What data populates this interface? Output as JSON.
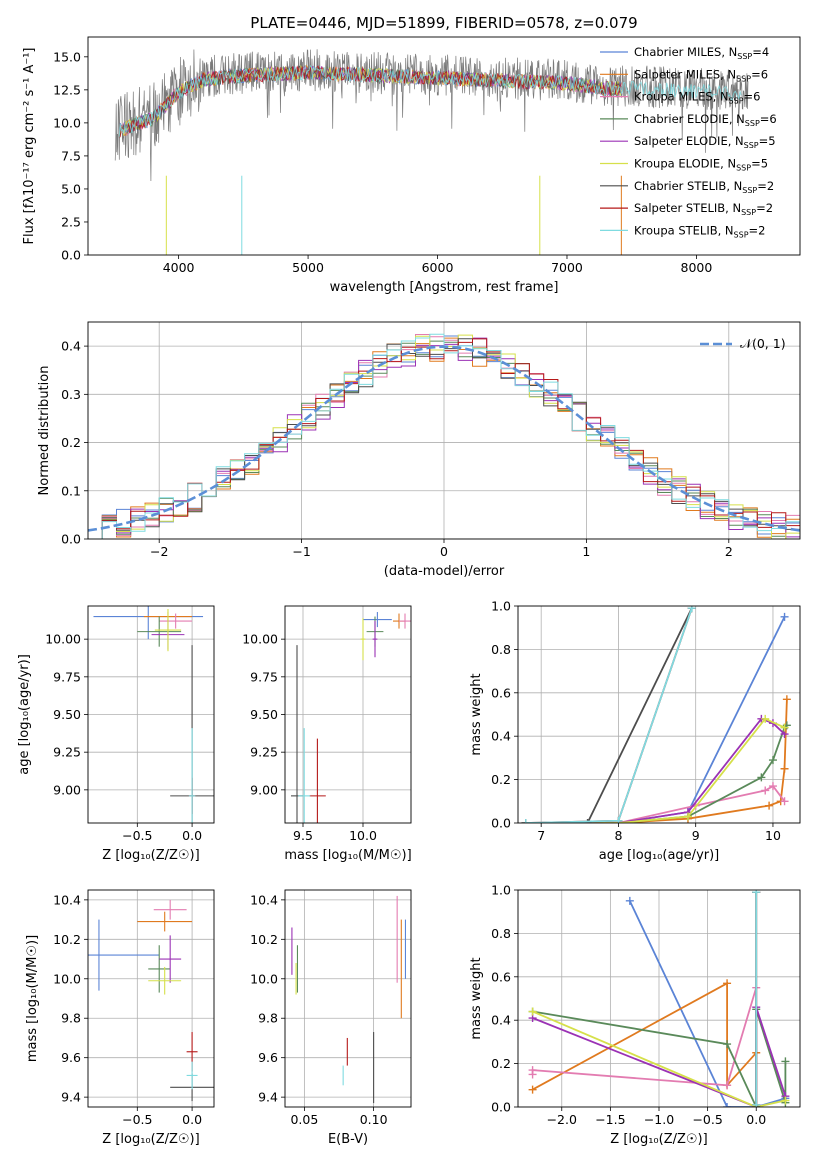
{
  "colors": {
    "chab_miles": "#5b84d6",
    "salp_miles": "#e07a1f",
    "krou_miles": "#e37cb1",
    "chab_elodie": "#5a8a5a",
    "salp_elodie": "#9b32b5",
    "krou_elodie": "#d6e04a",
    "chab_stelib": "#4d4d4d",
    "salp_stelib": "#b51919",
    "krou_stelib": "#7fdbe0",
    "gauss": "#5b8fd6"
  },
  "chart_data": [
    {
      "id": "spectrum",
      "type": "line",
      "title": "PLATE=0446, MJD=51899, FIBERID=0578, z=0.079",
      "xlabel": "wavelength [Angstrom, rest frame]",
      "ylabel": "Flux [fλ10⁻¹⁷ erg cm⁻² s⁻¹ A⁻¹]",
      "xlim": [
        3300,
        8800
      ],
      "ylim": [
        0,
        16.5
      ],
      "xticks": [
        "4000",
        "5000",
        "6000",
        "7000",
        "8000"
      ],
      "yticks": [
        "0.0",
        "2.5",
        "5.0",
        "7.5",
        "10.0",
        "12.5",
        "15.0"
      ],
      "legend_position": "top-right",
      "legend": [
        {
          "label": "Chabrier MILES, N",
          "sub": "SSP",
          "suffix": "=4",
          "color_key": "chab_miles"
        },
        {
          "label": "Salpeter MILES, N",
          "sub": "SSP",
          "suffix": "=6",
          "color_key": "salp_miles"
        },
        {
          "label": "Kroupa MILES, N",
          "sub": "SSP",
          "suffix": "=6",
          "color_key": "krou_miles"
        },
        {
          "label": "Chabrier ELODIE, N",
          "sub": "SSP",
          "suffix": "=6",
          "color_key": "chab_elodie"
        },
        {
          "label": "Salpeter ELODIE, N",
          "sub": "SSP",
          "suffix": "=5",
          "color_key": "salp_elodie"
        },
        {
          "label": "Kroupa ELODIE, N",
          "sub": "SSP",
          "suffix": "=5",
          "color_key": "krou_elodie"
        },
        {
          "label": "Chabrier STELIB, N",
          "sub": "SSP",
          "suffix": "=2",
          "color_key": "chab_stelib"
        },
        {
          "label": "Salpeter STELIB, N",
          "sub": "SSP",
          "suffix": "=2",
          "color_key": "salp_stelib"
        },
        {
          "label": "Kroupa STELIB, N",
          "sub": "SSP",
          "suffix": "=2",
          "color_key": "krou_stelib"
        }
      ],
      "data_envelope": {
        "x": [
          3500,
          3800,
          4000,
          4200,
          4500,
          5000,
          5500,
          6000,
          6500,
          7000,
          7300,
          7500,
          8000,
          8500
        ],
        "y": [
          9.5,
          10.5,
          12.5,
          13.5,
          13.8,
          14.0,
          13.8,
          13.6,
          13.4,
          13.2,
          12.8,
          12.8,
          12.6,
          12.3
        ]
      },
      "model_cutoff_x": 7420
    },
    {
      "id": "residuals",
      "type": "line",
      "xlabel": "(data-model)/error",
      "ylabel": "Normed distribution",
      "xlim": [
        -2.5,
        2.5
      ],
      "ylim": [
        0,
        0.45
      ],
      "xticks": [
        "−2",
        "−1",
        "0",
        "1",
        "2"
      ],
      "yticks": [
        "0.0",
        "0.1",
        "0.2",
        "0.3",
        "0.4"
      ],
      "grid": true,
      "legend": [
        {
          "label": "𝒩(0, 1)",
          "color_key": "gauss"
        }
      ],
      "legend_position": "top-right",
      "bin_width": 0.1
    },
    {
      "id": "age_vs_Z",
      "type": "scatter",
      "xlabel": "Z [log₁₀(Z/Z☉)]",
      "ylabel": "age  [log₁₀(age/yr)]",
      "xlim": [
        -0.95,
        0.2
      ],
      "ylim": [
        8.78,
        10.22
      ],
      "xticks": [
        "−0.5",
        "0.0"
      ],
      "yticks": [
        "9.00",
        "9.25",
        "9.50",
        "9.75",
        "10.00"
      ],
      "grid": true,
      "points": [
        {
          "k": "chab_miles",
          "x": -0.4,
          "y": 10.15,
          "xe": 0.5,
          "ye": 0.15
        },
        {
          "k": "salp_miles",
          "x": -0.22,
          "y": 10.15,
          "xe": 0.22,
          "ye": 0.03
        },
        {
          "k": "krou_miles",
          "x": -0.15,
          "y": 10.12,
          "xe": 0.15,
          "ye": 0.05
        },
        {
          "k": "chab_elodie",
          "x": -0.3,
          "y": 10.05,
          "xe": 0.2,
          "ye": 0.1
        },
        {
          "k": "salp_elodie",
          "x": -0.22,
          "y": 10.03,
          "xe": 0.15,
          "ye": 0.1
        },
        {
          "k": "krou_elodie",
          "x": -0.22,
          "y": 10.06,
          "xe": 0.12,
          "ye": 0.14
        },
        {
          "k": "chab_stelib",
          "x": 0.0,
          "y": 8.96,
          "xe": 0.2,
          "ye": 1.0
        },
        {
          "k": "salp_stelib",
          "x": 0.0,
          "y": 8.96,
          "xe": 0.03,
          "ye": 0.12
        },
        {
          "k": "krou_stelib",
          "x": 0.0,
          "y": 8.96,
          "xe": 0.03,
          "ye": 0.45
        }
      ]
    },
    {
      "id": "age_vs_mass",
      "type": "scatter",
      "xlabel": "mass [log₁₀(M/M☉)]",
      "ylabel": "",
      "xlim": [
        9.35,
        10.4
      ],
      "ylim": [
        8.78,
        10.22
      ],
      "xticks": [
        "9.5",
        "10.0"
      ],
      "yticks": [
        "9.00",
        "9.25",
        "9.50",
        "9.75",
        "10.00"
      ],
      "grid": true,
      "points": [
        {
          "k": "chab_miles",
          "x": 10.12,
          "y": 10.13,
          "xe": 0.12,
          "ye": 0.05
        },
        {
          "k": "salp_miles",
          "x": 10.3,
          "y": 10.12,
          "xe": 0.05,
          "ye": 0.05
        },
        {
          "k": "krou_miles",
          "x": 10.35,
          "y": 10.12,
          "xe": 0.05,
          "ye": 0.05
        },
        {
          "k": "chab_elodie",
          "x": 10.1,
          "y": 10.05,
          "xe": 0.07,
          "ye": 0.1
        },
        {
          "k": "salp_elodie",
          "x": 10.1,
          "y": 10.0,
          "xe": 0.02,
          "ye": 0.12
        },
        {
          "k": "krou_elodie",
          "x": 10.0,
          "y": 10.0,
          "xe": 0.02,
          "ye": 0.14
        },
        {
          "k": "chab_stelib",
          "x": 9.45,
          "y": 8.96,
          "xe": 0.05,
          "ye": 1.0
        },
        {
          "k": "salp_stelib",
          "x": 9.62,
          "y": 8.96,
          "xe": 0.07,
          "ye": 0.38
        },
        {
          "k": "krou_stelib",
          "x": 9.51,
          "y": 8.96,
          "xe": 0.05,
          "ye": 0.45
        }
      ]
    },
    {
      "id": "weight_vs_age",
      "type": "line",
      "xlabel": "age  [log₁₀(age/yr)]",
      "ylabel": "mass weight",
      "xlim": [
        6.7,
        10.35
      ],
      "ylim": [
        0,
        1.0
      ],
      "xticks": [
        "7",
        "8",
        "9",
        "10"
      ],
      "yticks": [
        "0.0",
        "0.2",
        "0.4",
        "0.6",
        "0.8",
        "1.0"
      ],
      "grid": true,
      "series": [
        {
          "k": "chab_miles",
          "x": [
            6.8,
            8.0,
            8.9,
            10.15
          ],
          "y": [
            0.0,
            0.0,
            0.05,
            0.95
          ]
        },
        {
          "k": "salp_miles",
          "x": [
            6.8,
            8.0,
            8.9,
            9.95,
            10.1,
            10.15,
            10.18
          ],
          "y": [
            0.0,
            0.0,
            0.02,
            0.08,
            0.1,
            0.25,
            0.57
          ]
        },
        {
          "k": "krou_miles",
          "x": [
            6.8,
            8.0,
            9.0,
            9.9,
            10.0,
            10.15
          ],
          "y": [
            0.0,
            0.0,
            0.08,
            0.15,
            0.17,
            0.1
          ]
        },
        {
          "k": "chab_elodie",
          "x": [
            6.8,
            8.0,
            8.9,
            9.85,
            10.0,
            10.15,
            10.18
          ],
          "y": [
            0.0,
            0.0,
            0.03,
            0.21,
            0.29,
            0.44,
            0.45
          ]
        },
        {
          "k": "salp_elodie",
          "x": [
            6.8,
            8.0,
            8.9,
            9.85,
            10.0,
            10.15
          ],
          "y": [
            0.0,
            0.0,
            0.05,
            0.48,
            0.46,
            0.41
          ]
        },
        {
          "k": "krou_elodie",
          "x": [
            6.8,
            8.0,
            8.9,
            9.9,
            10.15
          ],
          "y": [
            0.0,
            0.0,
            0.03,
            0.48,
            0.44
          ]
        },
        {
          "k": "chab_stelib",
          "x": [
            6.8,
            7.6,
            8.95
          ],
          "y": [
            0.0,
            0.0,
            0.99
          ]
        },
        {
          "k": "salp_stelib",
          "x": [
            6.8,
            8.0,
            8.95
          ],
          "y": [
            0.0,
            0.01,
            0.99
          ]
        },
        {
          "k": "krou_stelib",
          "x": [
            6.8,
            8.0,
            8.95
          ],
          "y": [
            0.0,
            0.01,
            0.99
          ]
        }
      ]
    },
    {
      "id": "mass_vs_Z",
      "type": "scatter",
      "xlabel": "Z [log₁₀(Z/Z☉)]",
      "ylabel": "mass [log₁₀(M/M☉)]",
      "xlim": [
        -0.95,
        0.2
      ],
      "ylim": [
        9.35,
        10.45
      ],
      "xticks": [
        "−0.5",
        "0.0"
      ],
      "yticks": [
        "9.4",
        "9.6",
        "9.8",
        "10.0",
        "10.2",
        "10.4"
      ],
      "grid": true,
      "points": [
        {
          "k": "chab_miles",
          "x": -0.85,
          "y": 10.12,
          "xe": 0.55,
          "ye": 0.18
        },
        {
          "k": "salp_miles",
          "x": -0.25,
          "y": 10.29,
          "xe": 0.25,
          "ye": 0.05
        },
        {
          "k": "krou_miles",
          "x": -0.2,
          "y": 10.35,
          "xe": 0.15,
          "ye": 0.05
        },
        {
          "k": "chab_elodie",
          "x": -0.3,
          "y": 10.05,
          "xe": 0.1,
          "ye": 0.12
        },
        {
          "k": "salp_elodie",
          "x": -0.2,
          "y": 10.1,
          "xe": 0.1,
          "ye": 0.12
        },
        {
          "k": "krou_elodie",
          "x": -0.25,
          "y": 9.99,
          "xe": 0.15,
          "ye": 0.07
        },
        {
          "k": "chab_stelib",
          "x": 0.0,
          "y": 9.45,
          "xe": 0.2,
          "ye": 0.07
        },
        {
          "k": "salp_stelib",
          "x": 0.0,
          "y": 9.63,
          "xe": 0.05,
          "ye": 0.1
        },
        {
          "k": "krou_stelib",
          "x": 0.0,
          "y": 9.51,
          "xe": 0.05,
          "ye": 0.07
        }
      ]
    },
    {
      "id": "mass_vs_ebv",
      "type": "scatter",
      "xlabel": "E(B-V)",
      "ylabel": "",
      "xlim": [
        0.036,
        0.127
      ],
      "ylim": [
        9.35,
        10.45
      ],
      "xticks": [
        "0.05",
        "0.10"
      ],
      "yticks": [
        "9.4",
        "9.6",
        "9.8",
        "10.0",
        "10.2",
        "10.4"
      ],
      "grid": true,
      "points": [
        {
          "k": "chab_miles",
          "x": 0.123,
          "y": 10.15,
          "ye": 0.15
        },
        {
          "k": "salp_miles",
          "x": 0.12,
          "y": 10.05,
          "ye": 0.25
        },
        {
          "k": "krou_miles",
          "x": 0.117,
          "y": 10.2,
          "ye": 0.22
        },
        {
          "k": "chab_elodie",
          "x": 0.045,
          "y": 10.05,
          "ye": 0.12
        },
        {
          "k": "salp_elodie",
          "x": 0.041,
          "y": 10.14,
          "ye": 0.12
        },
        {
          "k": "krou_elodie",
          "x": 0.044,
          "y": 10.0,
          "ye": 0.08
        },
        {
          "k": "chab_stelib",
          "x": 0.1,
          "y": 9.55,
          "ye": 0.18
        },
        {
          "k": "salp_stelib",
          "x": 0.081,
          "y": 9.63,
          "ye": 0.07
        },
        {
          "k": "krou_stelib",
          "x": 0.078,
          "y": 9.51,
          "ye": 0.05
        }
      ]
    },
    {
      "id": "weight_vs_Z",
      "type": "line",
      "xlabel": "Z [log₁₀(Z/Z☉)]",
      "ylabel": "mass weight",
      "xlim": [
        -2.45,
        0.45
      ],
      "ylim": [
        0,
        1.0
      ],
      "xticks": [
        "−2.0",
        "−1.5",
        "−1.0",
        "−0.5",
        "0.0"
      ],
      "yticks": [
        "0.0",
        "0.2",
        "0.4",
        "0.6",
        "0.8",
        "1.0"
      ],
      "grid": true,
      "series": [
        {
          "k": "chab_miles",
          "x": [
            -1.3,
            -0.3,
            0.0,
            0.3
          ],
          "y": [
            0.95,
            0.0,
            0.0,
            0.04
          ]
        },
        {
          "k": "salp_miles",
          "x": [
            -2.3,
            -0.3,
            -0.3,
            0.0,
            0.0
          ],
          "y": [
            0.08,
            0.57,
            0.1,
            0.25,
            0.0
          ]
        },
        {
          "k": "krou_miles",
          "x": [
            -2.3,
            -2.3,
            -0.3,
            0.0,
            0.0
          ],
          "y": [
            0.15,
            0.17,
            0.1,
            0.55,
            0.0
          ]
        },
        {
          "k": "chab_elodie",
          "x": [
            -2.3,
            -0.3,
            0.0,
            0.0,
            0.3,
            0.3
          ],
          "y": [
            0.44,
            0.29,
            0.0,
            0.45,
            0.02,
            0.21
          ]
        },
        {
          "k": "salp_elodie",
          "x": [
            -2.3,
            0.0,
            0.0,
            0.3
          ],
          "y": [
            0.41,
            0.0,
            0.46,
            0.05
          ]
        },
        {
          "k": "krou_elodie",
          "x": [
            -2.3,
            0.0,
            0.3
          ],
          "y": [
            0.44,
            0.0,
            0.03
          ]
        },
        {
          "k": "chab_stelib",
          "x": [
            0.0,
            0.0
          ],
          "y": [
            0.0,
            0.99
          ]
        },
        {
          "k": "salp_stelib",
          "x": [
            0.0,
            0.0
          ],
          "y": [
            0.01,
            0.99
          ]
        },
        {
          "k": "krou_stelib",
          "x": [
            0.0,
            0.0
          ],
          "y": [
            0.01,
            0.99
          ]
        }
      ]
    }
  ]
}
